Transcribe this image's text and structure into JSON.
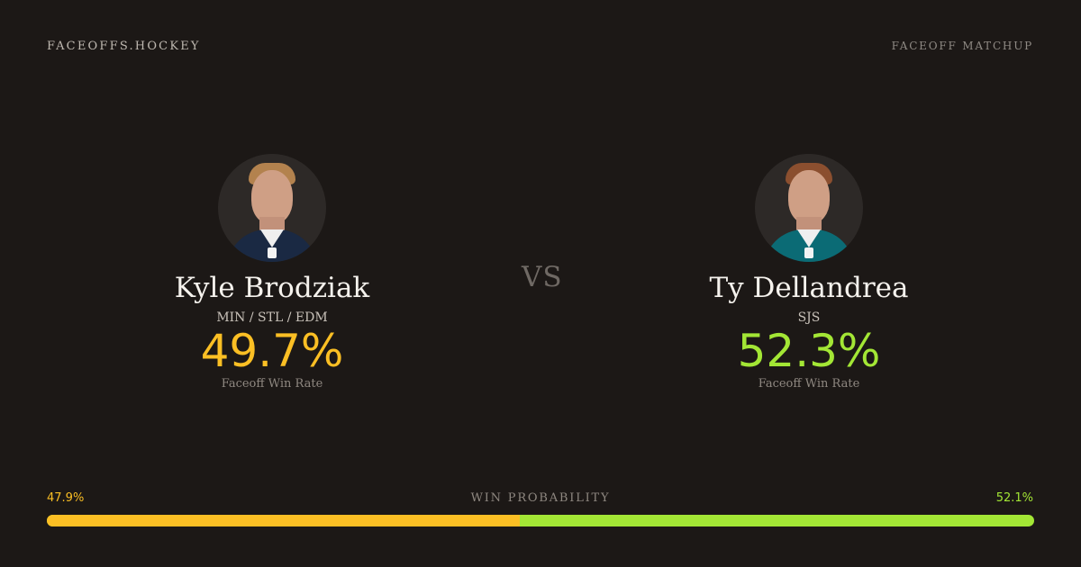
{
  "header": {
    "brand": "FACEOFFS.HOCKEY",
    "page_label": "FACEOFF MATCHUP"
  },
  "matchup": {
    "vs": "VS",
    "left_player": {
      "name": "Kyle Brodziak",
      "teams": "MIN / STL / EDM",
      "faceoff_pct": "49.7%",
      "faceoff_label": "Faceoff Win Rate"
    },
    "right_player": {
      "name": "Ty Dellandrea",
      "teams": "SJS",
      "faceoff_pct": "52.3%",
      "faceoff_label": "Faceoff Win Rate"
    }
  },
  "win_probability": {
    "title": "WIN PROBABILITY",
    "left_value": 47.9,
    "right_value": 52.1,
    "left_text": "47.9%",
    "right_text": "52.1%"
  },
  "colors": {
    "background": "#1c1816",
    "left_accent": "#fbbf24",
    "right_accent": "#a3e635"
  },
  "icons": {
    "left_avatar": "player-headshot",
    "right_avatar": "player-headshot"
  }
}
